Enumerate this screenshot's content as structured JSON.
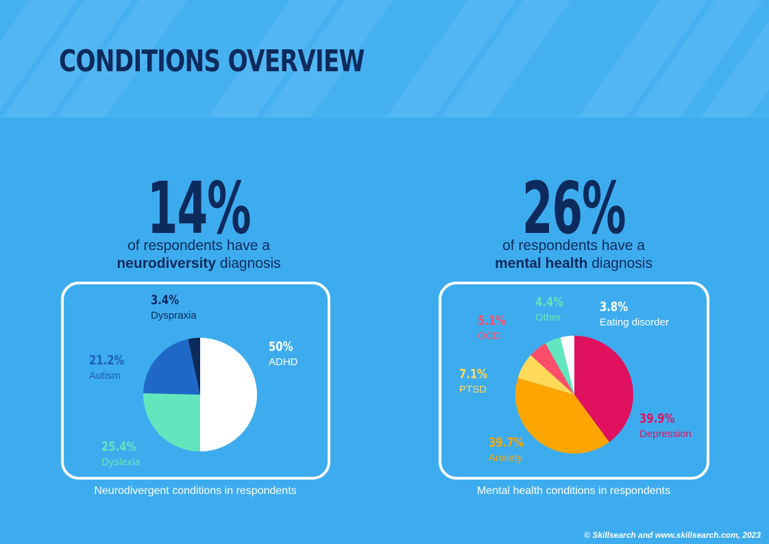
{
  "header": {
    "title": "CONDITIONS OVERVIEW"
  },
  "stats": [
    {
      "value": "14%",
      "line1": "of respondents have a",
      "bold": "neurodiversity",
      "rest": " diagnosis"
    },
    {
      "value": "26%",
      "line1": "of respondents have a",
      "bold": "mental health",
      "rest": " diagnosis"
    }
  ],
  "chart_data": [
    {
      "type": "pie",
      "title": "Neurodivergent conditions in respondents",
      "slices": [
        {
          "label": "ADHD",
          "display": "50%",
          "value": 50,
          "color": "#ffffff",
          "label_color": "#ffffff"
        },
        {
          "label": "Dyslexia",
          "display": "25.4%",
          "value": 25.4,
          "color": "#63e6be",
          "label_color": "#63e6be"
        },
        {
          "label": "Autism",
          "display": "21.2%",
          "value": 21.2,
          "color": "#2068c6",
          "label_color": "#1e5fb8"
        },
        {
          "label": "Dyspraxia",
          "display": "3.4%",
          "value": 3.4,
          "color": "#0d2a5c",
          "label_color": "#0d2a5c"
        }
      ]
    },
    {
      "type": "pie",
      "title": "Mental health conditions in respondents",
      "slices": [
        {
          "label": "Depression",
          "display": "39.9%",
          "value": 39.9,
          "color": "#e0115f",
          "label_color": "#e0115f"
        },
        {
          "label": "Anxiety",
          "display": "39.7%",
          "value": 39.7,
          "color": "#ffa500",
          "label_color": "#ffa500"
        },
        {
          "label": "PTSD",
          "display": "7.1%",
          "value": 7.1,
          "color": "#ffd95a",
          "label_color": "#ffd95a"
        },
        {
          "label": "OCD",
          "display": "5.1%",
          "value": 5.1,
          "color": "#ff4d6a",
          "label_color": "#ff4d6a"
        },
        {
          "label": "Other",
          "display": "4.4%",
          "value": 4.4,
          "color": "#63e6be",
          "label_color": "#63e6be"
        },
        {
          "label": "Eating disorder",
          "display": "3.8%",
          "value": 3.8,
          "color": "#ffffff",
          "label_color": "#ffffff"
        }
      ]
    }
  ],
  "footer": {
    "credit": "© Skillsearch and www.skillsearch.com, 2023"
  }
}
